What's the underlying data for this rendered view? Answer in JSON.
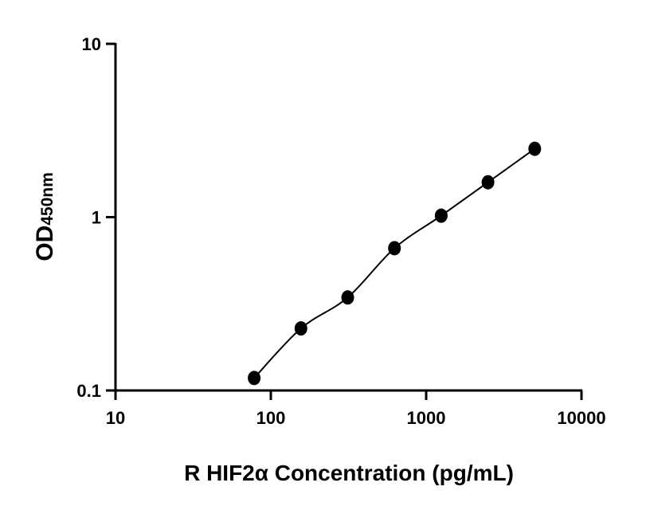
{
  "chart_data": {
    "type": "scatter",
    "title": "",
    "xlabel": "R HIF2α Concentration (pg/mL)",
    "ylabel_main": "OD",
    "ylabel_sub": "450nm",
    "xscale": "log",
    "yscale": "log",
    "xlim": [
      10,
      10000
    ],
    "ylim": [
      0.1,
      10
    ],
    "xticks": [
      10,
      100,
      1000,
      10000
    ],
    "xtick_labels": [
      "10",
      "100",
      "1000",
      "10000"
    ],
    "yticks": [
      0.1,
      1,
      10
    ],
    "ytick_labels": [
      "0.1",
      "1",
      "10"
    ],
    "grid": false,
    "legend": "none",
    "fit_curve": true,
    "color": "#000000",
    "points": [
      {
        "x": 78.125,
        "y": 0.118
      },
      {
        "x": 156.25,
        "y": 0.228
      },
      {
        "x": 312.5,
        "y": 0.344
      },
      {
        "x": 625,
        "y": 0.662
      },
      {
        "x": 1250,
        "y": 1.02
      },
      {
        "x": 2500,
        "y": 1.59
      },
      {
        "x": 5000,
        "y": 2.48
      }
    ]
  }
}
